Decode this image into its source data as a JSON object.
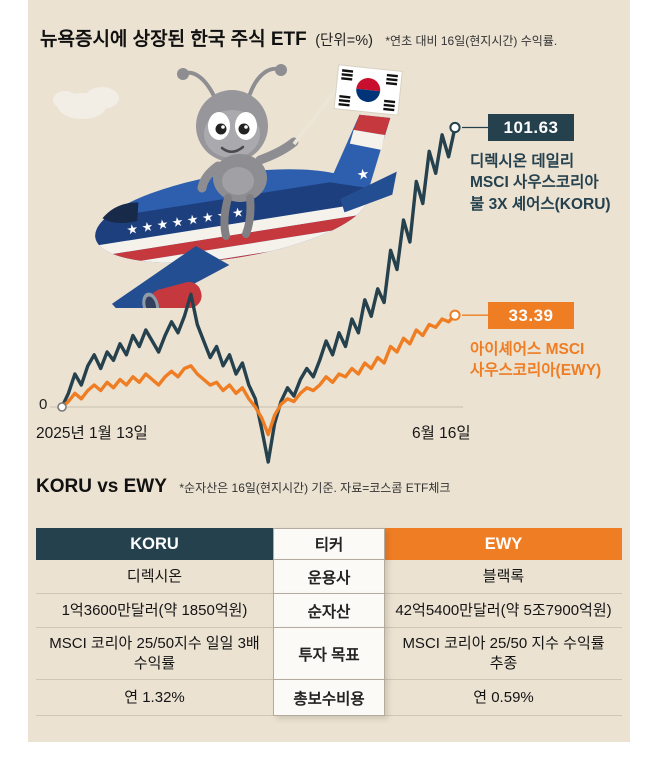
{
  "header": {
    "title": "뉴욕증시에 상장된 한국 주식 ETF",
    "unit": "(단위=%)",
    "note": "*연초 대비 16일(현지시간) 수익률."
  },
  "colors": {
    "koru": "#25414e",
    "ewy": "#ef7d23",
    "background": "#ebe2d2"
  },
  "chart_data": {
    "type": "line",
    "title": "뉴욕증시에 상장된 한국 주식 ETF",
    "unit": "%",
    "zero_label": "0",
    "x_start_label": "2025년 1월 13일",
    "x_end_label": "6월 16일",
    "ylim": [
      -25,
      105
    ],
    "grid": false,
    "layout": {
      "x0": 32,
      "x1": 425,
      "zeroY": 295,
      "scale": 2.75
    },
    "series": [
      {
        "name": "KORU",
        "color": "#25414e",
        "end_value": 101.63,
        "end_value_label": "101.63",
        "label_lines": [
          "디렉시온 데일리",
          "MSCI 사우스코리아",
          "불 3X 셰어스(KORU)"
        ],
        "values": [
          0,
          5,
          12,
          8,
          15,
          19,
          14,
          20,
          17,
          23,
          19,
          26,
          22,
          28,
          24,
          20,
          26,
          31,
          27,
          33,
          41,
          30,
          24,
          18,
          22,
          15,
          19,
          12,
          16,
          8,
          3,
          -8,
          -20,
          -6,
          2,
          7,
          4,
          10,
          14,
          11,
          17,
          24,
          19,
          27,
          22,
          32,
          27,
          39,
          33,
          43,
          38,
          57,
          50,
          68,
          60,
          82,
          74,
          93,
          85,
          99,
          91,
          101.63
        ]
      },
      {
        "name": "EWY",
        "color": "#ef7d23",
        "end_value": 33.39,
        "end_value_label": "33.39",
        "label_lines": [
          "아이셰어스 MSCI",
          "사우스코리아(EWY)"
        ],
        "values": [
          0,
          2,
          5,
          3,
          6,
          8,
          6,
          9,
          7,
          10,
          8,
          11,
          9,
          12,
          10,
          8,
          11,
          13,
          11,
          14,
          15,
          12,
          10,
          8,
          9,
          6,
          8,
          5,
          7,
          3,
          0,
          -4,
          -10,
          -3,
          1,
          3,
          2,
          5,
          7,
          6,
          8,
          11,
          9,
          12,
          11,
          14,
          12,
          16,
          14,
          18,
          16,
          22,
          20,
          25,
          23,
          28,
          26,
          30,
          29,
          32,
          31,
          33.39
        ]
      }
    ]
  },
  "comparison": {
    "heading": "KORU vs EWY",
    "note": "*순자산은 16일(현지시간) 기준. 자료=코스콤 ETF체크",
    "columns": {
      "left": "KORU",
      "center": "티커",
      "right": "EWY"
    },
    "rows": [
      {
        "ticker": "운용사",
        "koru": "디렉시온",
        "ewy": "블랙록"
      },
      {
        "ticker": "순자산",
        "koru": "1억3600만달러(약 1850억원)",
        "ewy": "42억5400만달러(약 5조7900억원)"
      },
      {
        "ticker": "투자 목표",
        "koru": "MSCI 코리아 25/50지수 일일 3배 수익률",
        "ewy": "MSCI 코리아 25/50 지수 수익률 추종"
      },
      {
        "ticker": "총보수비용",
        "koru": "연 1.32%",
        "ewy": "연 0.59%"
      }
    ]
  }
}
